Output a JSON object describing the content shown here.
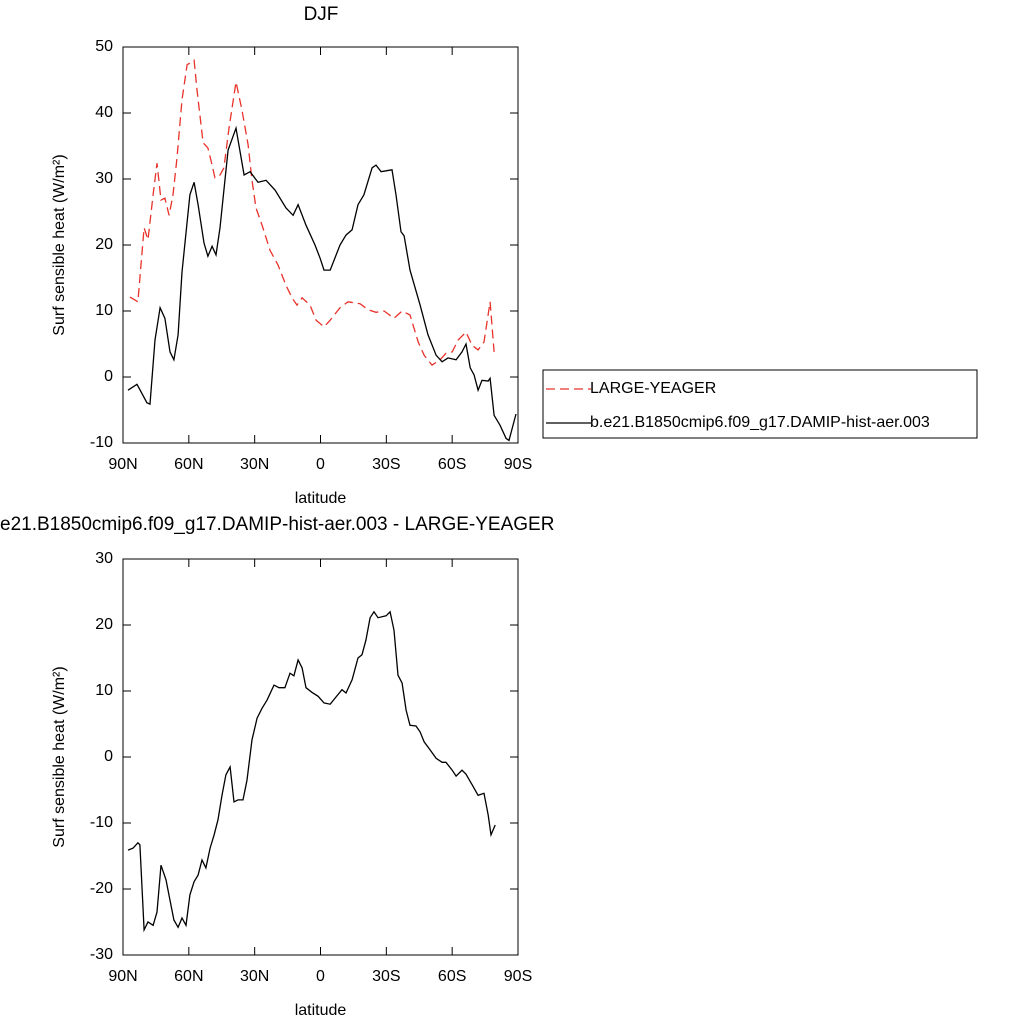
{
  "chart_data": [
    {
      "type": "line",
      "title": "DJF",
      "xlabel": "latitude",
      "ylabel": "Surf sensible heat (W/m²)",
      "xlim": [
        90,
        -90
      ],
      "xticks": [
        {
          "value": 90,
          "label": "90N"
        },
        {
          "value": 60,
          "label": "60N"
        },
        {
          "value": 30,
          "label": "30N"
        },
        0,
        {
          "value": -30,
          "label": "30S"
        },
        {
          "value": -60,
          "label": "60S"
        },
        {
          "value": -90,
          "label": "90S"
        }
      ],
      "ylim": [
        -10,
        50
      ],
      "yticks": [
        -10,
        0,
        10,
        20,
        30,
        40,
        50
      ],
      "legend": "right",
      "series": [
        {
          "name": "LARGE-YEAGER",
          "color": "#e8322b",
          "dash": true,
          "x": [
            86.8,
            83.2,
            80.4,
            78.6,
            76.3,
            74.5,
            72.7,
            70.9,
            69.0,
            67.2,
            65.4,
            63.1,
            60.8,
            57.6,
            56.3,
            53.5,
            51.3,
            49.4,
            48.1,
            45.8,
            44.0,
            41.7,
            38.5,
            35.8,
            33.0,
            31.2,
            29.4,
            26.6,
            23.0,
            19.4,
            15.7,
            13.0,
            10.7,
            8.4,
            4.8,
            2.0,
            -1.6,
            -4.4,
            -8.9,
            -12.6,
            -18.0,
            -21.7,
            -25.3,
            -29.0,
            -33.5,
            -37.2,
            -40.8,
            -44.5,
            -47.2,
            -50.8,
            -54.5,
            -57.2,
            -60.0,
            -62.7,
            -66.3,
            -69.1,
            -71.8,
            -74.5,
            -77.3,
            -79.1
          ],
          "values": [
            12.1,
            11.4,
            22.6,
            20.8,
            27.6,
            32.4,
            26.8,
            27.1,
            24.5,
            27.6,
            33.2,
            42.0,
            47.3,
            48.0,
            43.5,
            35.5,
            34.7,
            32.1,
            30.2,
            30.6,
            31.7,
            37.7,
            44.7,
            40.5,
            35.2,
            29.8,
            25.6,
            23.0,
            19.2,
            17.0,
            13.9,
            12.0,
            10.9,
            12.0,
            10.9,
            8.6,
            7.6,
            8.6,
            10.5,
            11.4,
            11.1,
            10.2,
            9.8,
            10.0,
            8.9,
            10.0,
            9.4,
            5.3,
            3.3,
            1.8,
            2.6,
            3.6,
            3.8,
            5.6,
            6.8,
            4.8,
            4.1,
            5.3,
            11.4,
            3.8
          ]
        },
        {
          "name": "b.e21.B1850cmip6.f09_g17.DAMIP-hist-aer.003",
          "color": "#000000",
          "dash": false,
          "x": [
            87.7,
            83.6,
            79.1,
            77.7,
            75.4,
            73.1,
            70.9,
            68.6,
            66.8,
            64.9,
            63.1,
            59.5,
            57.6,
            55.8,
            53.1,
            51.3,
            49.4,
            47.6,
            45.8,
            44.0,
            42.1,
            38.5,
            34.8,
            32.1,
            28.5,
            24.8,
            20.7,
            15.7,
            12.5,
            10.2,
            6.6,
            2.5,
            0.2,
            -1.6,
            -4.4,
            -8.9,
            -11.6,
            -14.4,
            -17.1,
            -19.8,
            -23.5,
            -25.3,
            -27.6,
            -32.6,
            -34.4,
            -36.7,
            -38.1,
            -40.8,
            -45.4,
            -49.0,
            -52.7,
            -55.4,
            -58.1,
            -61.8,
            -64.5,
            -66.3,
            -68.2,
            -70.0,
            -71.8,
            -73.6,
            -76.4,
            -77.3,
            -79.1,
            -81.8,
            -84.6,
            -85.9,
            -89.1
          ],
          "values": [
            -2.0,
            -1.1,
            -3.9,
            -4.1,
            5.6,
            10.5,
            8.9,
            3.8,
            2.6,
            6.4,
            15.9,
            27.6,
            29.5,
            26.1,
            20.3,
            18.3,
            19.8,
            18.5,
            22.6,
            28.3,
            34.4,
            37.7,
            30.6,
            31.1,
            29.5,
            29.8,
            28.3,
            25.6,
            24.5,
            26.1,
            23.0,
            20.0,
            18.0,
            16.2,
            16.2,
            20.0,
            21.5,
            22.3,
            26.1,
            27.6,
            31.7,
            32.1,
            31.1,
            31.4,
            27.6,
            22.0,
            21.4,
            16.2,
            10.9,
            6.4,
            3.3,
            2.3,
            2.9,
            2.6,
            3.8,
            5.0,
            1.4,
            0.3,
            -2.0,
            -0.5,
            -0.6,
            -0.2,
            -5.8,
            -7.3,
            -9.3,
            -9.6,
            -5.6
          ]
        }
      ]
    },
    {
      "type": "line",
      "title": "e21.B1850cmip6.f09_g17.DAMIP-hist-aer.003 - LARGE-YEAGER",
      "xlabel": "latitude",
      "ylabel": "Surf sensible heat (W/m²)",
      "xlim": [
        90,
        -90
      ],
      "xticks": [
        {
          "value": 90,
          "label": "90N"
        },
        {
          "value": 60,
          "label": "60N"
        },
        {
          "value": 30,
          "label": "30N"
        },
        0,
        {
          "value": -30,
          "label": "30S"
        },
        {
          "value": -60,
          "label": "60S"
        },
        {
          "value": -90,
          "label": "90S"
        }
      ],
      "ylim": [
        -30,
        30
      ],
      "yticks": [
        -30,
        -20,
        -10,
        0,
        10,
        20,
        30
      ],
      "series": [
        {
          "color": "#000000",
          "dash": false,
          "x": [
            87.7,
            85.4,
            83.2,
            82.3,
            80.4,
            78.6,
            76.3,
            74.5,
            72.7,
            70.4,
            68.6,
            66.8,
            64.9,
            63.1,
            61.3,
            59.5,
            57.6,
            55.8,
            54.0,
            52.2,
            50.3,
            48.5,
            46.7,
            44.9,
            43.1,
            41.2,
            39.4,
            37.6,
            35.3,
            33.5,
            31.2,
            28.9,
            26.6,
            24.4,
            21.2,
            18.9,
            16.2,
            13.9,
            12.1,
            10.2,
            8.4,
            6.6,
            3.9,
            1.1,
            -1.6,
            -4.4,
            -7.1,
            -9.8,
            -11.6,
            -14.4,
            -17.1,
            -18.9,
            -20.7,
            -22.6,
            -24.4,
            -26.2,
            -29.9,
            -31.7,
            -33.5,
            -35.3,
            -37.2,
            -39.0,
            -40.8,
            -43.5,
            -45.4,
            -47.2,
            -49.9,
            -52.7,
            -55.4,
            -57.2,
            -60.0,
            -61.8,
            -64.5,
            -66.3,
            -69.1,
            -71.8,
            -74.5,
            -76.4,
            -77.7,
            -79.6
          ],
          "values": [
            -14.1,
            -13.8,
            -13.0,
            -13.3,
            -26.2,
            -25.0,
            -25.5,
            -23.5,
            -16.4,
            -18.6,
            -21.7,
            -24.7,
            -25.8,
            -24.4,
            -25.5,
            -20.9,
            -18.9,
            -17.9,
            -15.6,
            -16.8,
            -13.8,
            -11.8,
            -9.5,
            -5.8,
            -2.7,
            -1.5,
            -6.8,
            -6.5,
            -6.5,
            -3.5,
            2.6,
            5.9,
            7.4,
            8.6,
            10.9,
            10.5,
            10.5,
            12.7,
            12.3,
            14.7,
            13.5,
            10.5,
            9.8,
            9.2,
            8.2,
            8.0,
            9.1,
            10.2,
            9.7,
            11.7,
            15.0,
            15.5,
            17.7,
            21.1,
            22.0,
            21.1,
            21.4,
            22.0,
            19.2,
            12.4,
            11.2,
            7.1,
            4.8,
            4.7,
            3.8,
            2.3,
            1.1,
            -0.2,
            -0.8,
            -0.8,
            -2.0,
            -2.9,
            -2.0,
            -2.6,
            -4.2,
            -5.8,
            -5.5,
            -8.8,
            -11.8,
            -10.3
          ]
        }
      ]
    }
  ]
}
